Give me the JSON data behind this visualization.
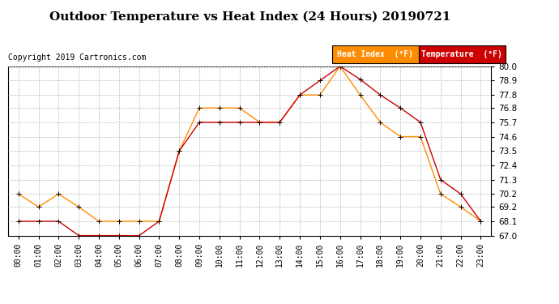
{
  "title": "Outdoor Temperature vs Heat Index (24 Hours) 20190721",
  "copyright": "Copyright 2019 Cartronics.com",
  "hours": [
    "00:00",
    "01:00",
    "02:00",
    "03:00",
    "04:00",
    "05:00",
    "06:00",
    "07:00",
    "08:00",
    "09:00",
    "10:00",
    "11:00",
    "12:00",
    "13:00",
    "14:00",
    "15:00",
    "16:00",
    "17:00",
    "18:00",
    "19:00",
    "20:00",
    "21:00",
    "22:00",
    "23:00"
  ],
  "temperature": [
    68.1,
    68.1,
    68.1,
    67.0,
    67.0,
    67.0,
    67.0,
    68.1,
    73.5,
    75.7,
    75.7,
    75.7,
    75.7,
    75.7,
    77.8,
    78.9,
    80.0,
    79.0,
    77.8,
    76.8,
    75.7,
    71.3,
    70.2,
    68.1
  ],
  "heat_index": [
    70.2,
    69.2,
    70.2,
    69.2,
    68.1,
    68.1,
    68.1,
    68.1,
    73.5,
    76.8,
    76.8,
    76.8,
    75.7,
    75.7,
    77.8,
    77.8,
    80.0,
    77.8,
    75.7,
    74.6,
    74.6,
    70.2,
    69.2,
    68.1
  ],
  "temp_color": "#cc0000",
  "heat_color": "#ff8c00",
  "ylim_min": 67.0,
  "ylim_max": 80.0,
  "yticks": [
    67.0,
    68.1,
    69.2,
    70.2,
    71.3,
    72.4,
    73.5,
    74.6,
    75.7,
    76.8,
    77.8,
    78.9,
    80.0
  ],
  "background_color": "#ffffff",
  "grid_color": "#bbbbbb",
  "legend_heat_bg": "#ff8c00",
  "legend_temp_bg": "#cc0000",
  "legend_text_color": "#ffffff",
  "title_fontsize": 11,
  "copyright_fontsize": 7,
  "tick_fontsize": 7,
  "ytick_fontsize": 7.5
}
